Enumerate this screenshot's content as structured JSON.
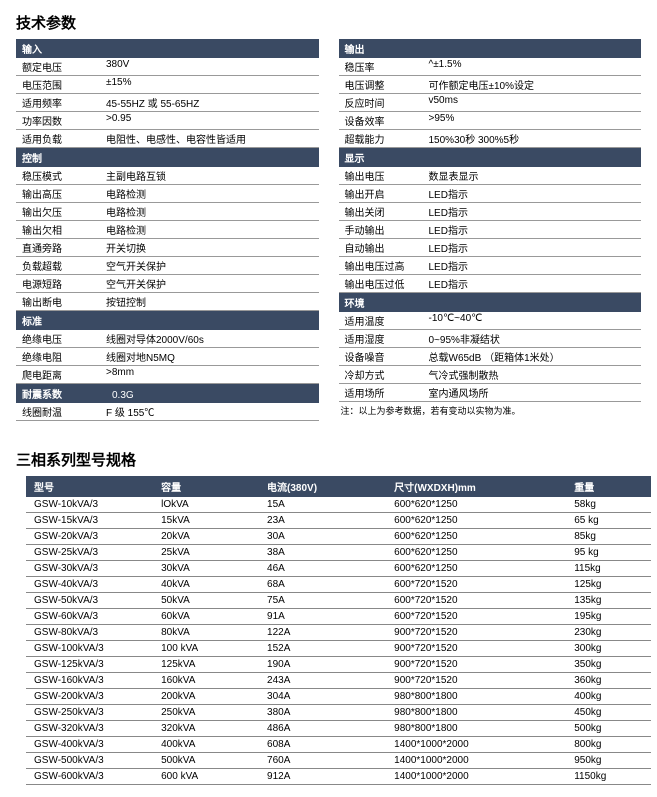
{
  "colors": {
    "header_bg": "#3a4a63",
    "header_fg": "#ffffff",
    "border": "#999999",
    "text": "#000000"
  },
  "fonts": {
    "title_size": 15,
    "body_size": 10,
    "note_size": 9
  },
  "title1": "技术参数",
  "title2": "三相系列型号规格",
  "left_sections": [
    {
      "header": "输入",
      "rows": [
        {
          "label": "额定电压",
          "value": "380V"
        },
        {
          "label": "电压范围",
          "value": "±15%"
        },
        {
          "label": "适用频率",
          "value": "45-55HZ 或 55-65HZ"
        },
        {
          "label": "功率因数",
          "value": ">0.95"
        },
        {
          "label": "适用负载",
          "value": "电阻性、电感性、电容性皆适用"
        }
      ]
    },
    {
      "header": "控制",
      "rows": [
        {
          "label": "稳压模式",
          "value": "主副电路互锁"
        },
        {
          "label": "输出高压",
          "value": "电路检测"
        },
        {
          "label": "输出欠压",
          "value": "电路检测"
        },
        {
          "label": "输出欠相",
          "value": "电路检测"
        },
        {
          "label": "直通旁路",
          "value": "开关切换"
        },
        {
          "label": "负载超载",
          "value": "空气开关保护"
        },
        {
          "label": "电源短路",
          "value": "空气开关保护"
        },
        {
          "label": "输出断电",
          "value": "按钮控制"
        }
      ]
    },
    {
      "header": "标准",
      "rows": [
        {
          "label": "绝缘电压",
          "value": "线圈对导体2000V/60s"
        },
        {
          "label": "绝缘电阻",
          "value": "线圈对地N5MQ"
        },
        {
          "label": "爬电距离",
          "value": ">8mm"
        }
      ]
    },
    {
      "header": "耐震系数",
      "rows": [
        {
          "label": "",
          "value": "0.3G"
        },
        {
          "label": "线圈耐温",
          "value": "F 级  155℃"
        }
      ]
    }
  ],
  "right_sections": [
    {
      "header": "输出",
      "rows": [
        {
          "label": "稳压率",
          "value": "^±1.5%"
        },
        {
          "label": "电压调整",
          "value": "可作额定电压±10%设定"
        },
        {
          "label": "反应时间",
          "value": "v50ms"
        },
        {
          "label": "设备效率",
          "value": ">95%"
        },
        {
          "label": "超载能力",
          "value": "150%30秒  300%5秒"
        }
      ]
    },
    {
      "header": "显示",
      "rows": [
        {
          "label": "输出电压",
          "value": "数显表显示"
        },
        {
          "label": "输出开启",
          "value": "LED指示"
        },
        {
          "label": "输出关闭",
          "value": "LED指示"
        },
        {
          "label": "手动输出",
          "value": "LED指示"
        },
        {
          "label": "自动输出",
          "value": "LED指示"
        },
        {
          "label": "输出电压过高",
          "value": "LED指示"
        },
        {
          "label": "输出电压过低",
          "value": "LED指示"
        }
      ]
    },
    {
      "header": "环境",
      "rows": [
        {
          "label": "适用温度",
          "value": "-10℃~40℃"
        },
        {
          "label": "适用湿度",
          "value": "0~95%非凝结状"
        },
        {
          "label": "设备噪音",
          "value": "总载W65dB （距箱体1米处）"
        },
        {
          "label": "冷却方式",
          "value": "气冷式强制散热"
        },
        {
          "label": "适用场所",
          "value": "室内通风场所"
        }
      ]
    }
  ],
  "note": "注：以上为参考数据，若有变动以实物为准。",
  "models": {
    "headers": [
      "型号",
      "容量",
      "电流(380V)",
      "尺寸(WXDXH)mm",
      "重量"
    ],
    "rows": [
      [
        "GSW-10kVA/3",
        "lOkVA",
        "15A",
        "600*620*1250",
        "58kg"
      ],
      [
        "GSW-15kVA/3",
        "15kVA",
        "23A",
        "600*620*1250",
        "65 kg"
      ],
      [
        "GSW-20kVA/3",
        "20kVA",
        "30A",
        "600*620*1250",
        "85kg"
      ],
      [
        "GSW-25kVA/3",
        "25kVA",
        "38A",
        "600*620*1250",
        "95 kg"
      ],
      [
        "GSW-30kVA/3",
        "30kVA",
        "46A",
        "600*620*1250",
        "115kg"
      ],
      [
        "GSW-40kVA/3",
        "40kVA",
        "68A",
        "600*720*1520",
        "125kg"
      ],
      [
        "GSW-50kVA/3",
        "50kVA",
        "75A",
        "600*720*1520",
        "135kg"
      ],
      [
        "GSW-60kVA/3",
        "60kVA",
        "91A",
        "600*720*1520",
        "195kg"
      ],
      [
        "GSW-80kVA/3",
        "80kVA",
        "122A",
        "900*720*1520",
        "230kg"
      ],
      [
        "GSW-100kVA/3",
        "100 kVA",
        "152A",
        "900*720*1520",
        "300kg"
      ],
      [
        "GSW-125kVA/3",
        "125kVA",
        "190A",
        "900*720*1520",
        "350kg"
      ],
      [
        "GSW-160kVA/3",
        "160kVA",
        "243A",
        "900*720*1520",
        "360kg"
      ],
      [
        "GSW-200kVA/3",
        "200kVA",
        "304A",
        "980*800*1800",
        "400kg"
      ],
      [
        "GSW-250kVA/3",
        "250kVA",
        "380A",
        "980*800*1800",
        "450kg"
      ],
      [
        "GSW-320kVA/3",
        "320kVA",
        "486A",
        "980*800*1800",
        "500kg"
      ],
      [
        "GSW-400kVA/3",
        "400kVA",
        "608A",
        "1400*1000*2000",
        "800kg"
      ],
      [
        "GSW-500kVA/3",
        "500kVA",
        "760A",
        "1400*1000*2000",
        "950kg"
      ],
      [
        "GSW-600kVA/3",
        "600 kVA",
        "912A",
        "1400*1000*2000",
        "1150kg"
      ]
    ]
  }
}
